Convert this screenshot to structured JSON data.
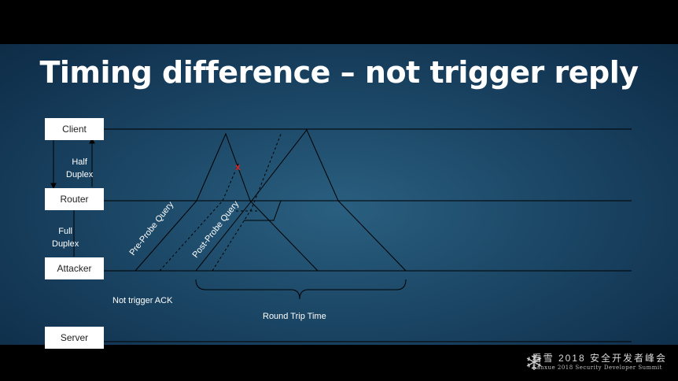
{
  "slide": {
    "title": "Timing difference – not trigger reply",
    "nodes": {
      "client": "Client",
      "router": "Router",
      "attacker": "Attacker",
      "server": "Server"
    },
    "labels": {
      "half_duplex": [
        "Half",
        "Duplex"
      ],
      "full_duplex": [
        "Full",
        "Duplex"
      ],
      "pre_probe": "Pre-Probe Query",
      "post_probe": "Post-Probe Query",
      "not_trigger_ack": "Not trigger ACK",
      "round_trip_time": "Round Trip Time",
      "drop_mark": "x"
    },
    "colors": {
      "line": "#000000",
      "drop_mark": "#e0231f"
    }
  },
  "footer": {
    "cn_text": "看雪 2018 安全开发者峰会",
    "en_text": "Kanxue 2018 Security Developer Summit",
    "logo_icon": "snowflake-icon"
  }
}
